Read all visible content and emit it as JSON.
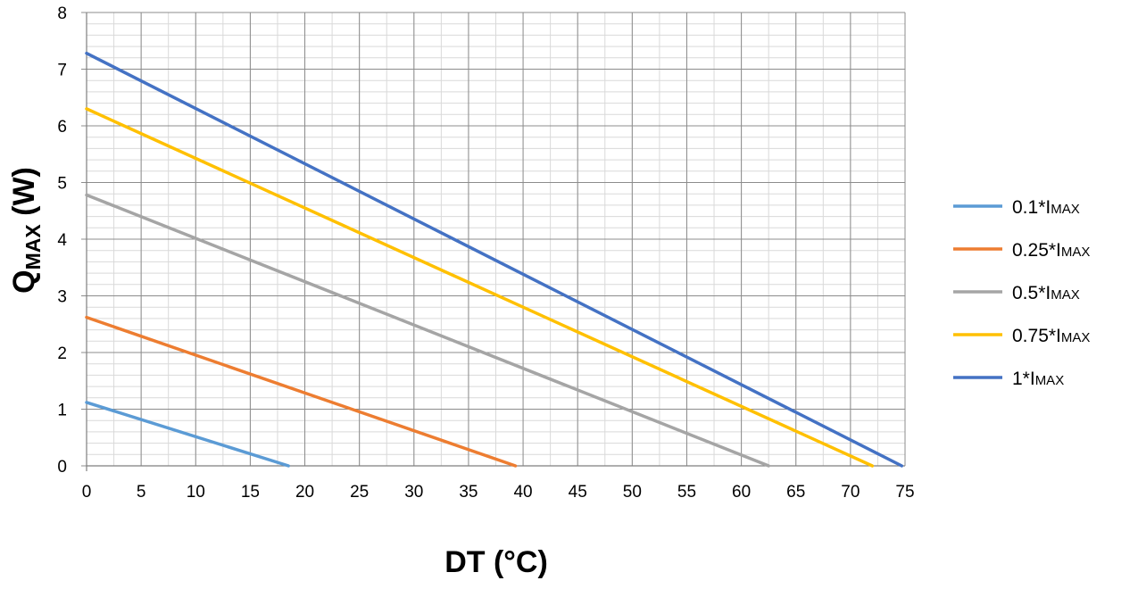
{
  "chart_data": {
    "type": "line",
    "xlabel": "DT (°C)",
    "ylabel": {
      "main": "Q",
      "sub": "MAX",
      "suffix": " (W)"
    },
    "xlim": [
      0,
      75
    ],
    "ylim": [
      0,
      8
    ],
    "x_ticks": [
      0,
      5,
      10,
      15,
      20,
      25,
      30,
      35,
      40,
      45,
      50,
      55,
      60,
      65,
      70,
      75
    ],
    "y_ticks": [
      0,
      1,
      2,
      3,
      4,
      5,
      6,
      7,
      8
    ],
    "x_minor_step": 2.5,
    "y_minor_step": 0.2,
    "grid": true,
    "legend_position": "right",
    "series": [
      {
        "name_main": "0.1*I",
        "name_sub": "MAX",
        "color": "#5B9BD5",
        "x": [
          0,
          18.5
        ],
        "y": [
          1.12,
          0
        ]
      },
      {
        "name_main": "0.25*I",
        "name_sub": "MAX",
        "color": "#ED7D31",
        "x": [
          0,
          39.3
        ],
        "y": [
          2.62,
          0
        ]
      },
      {
        "name_main": "0.5*I",
        "name_sub": "MAX",
        "color": "#A5A5A5",
        "x": [
          0,
          62.5
        ],
        "y": [
          4.78,
          0
        ]
      },
      {
        "name_main": "0.75*I",
        "name_sub": "MAX",
        "color": "#FFC000",
        "x": [
          0,
          72
        ],
        "y": [
          6.3,
          0
        ]
      },
      {
        "name_main": "1*I",
        "name_sub": "MAX",
        "color": "#4472C4",
        "x": [
          0,
          74.7
        ],
        "y": [
          7.28,
          0
        ]
      }
    ]
  }
}
